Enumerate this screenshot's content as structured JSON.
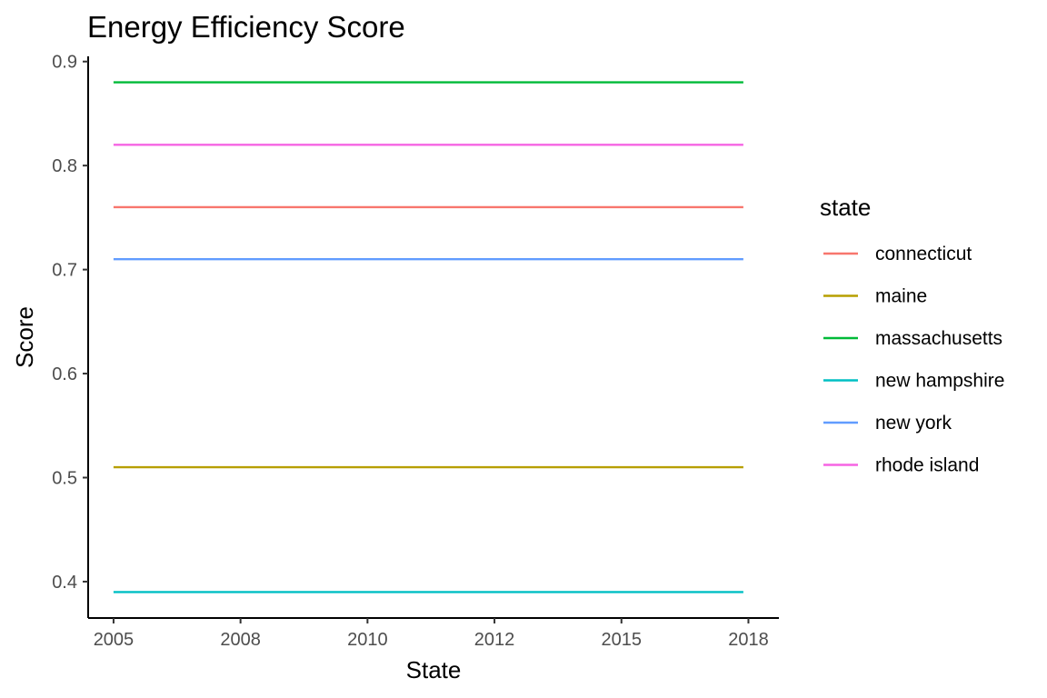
{
  "chart_data": {
    "type": "line",
    "title": "Energy Efficiency Score",
    "xlabel": "State",
    "ylabel": "Score",
    "xlim": [
      2004.5,
      2018.1
    ],
    "ylim": [
      0.365,
      0.905
    ],
    "x_ticks": [
      {
        "value": 2005.0,
        "label": "2005"
      },
      {
        "value": 2007.5,
        "label": "2008"
      },
      {
        "value": 2010.0,
        "label": "2010"
      },
      {
        "value": 2012.5,
        "label": "2012"
      },
      {
        "value": 2015.0,
        "label": "2015"
      },
      {
        "value": 2017.5,
        "label": "2018"
      }
    ],
    "y_ticks": [
      {
        "value": 0.4,
        "label": "0.4"
      },
      {
        "value": 0.5,
        "label": "0.5"
      },
      {
        "value": 0.6,
        "label": "0.6"
      },
      {
        "value": 0.7,
        "label": "0.7"
      },
      {
        "value": 0.8,
        "label": "0.8"
      },
      {
        "value": 0.9,
        "label": "0.9"
      }
    ],
    "grid": false,
    "legend": {
      "title": "state",
      "position": "right"
    },
    "series": [
      {
        "name": "connecticut",
        "color": "#F8766D",
        "x": [
          2005,
          2017.4
        ],
        "y": [
          0.76,
          0.76
        ]
      },
      {
        "name": "maine",
        "color": "#B79F00",
        "x": [
          2005,
          2017.4
        ],
        "y": [
          0.51,
          0.51
        ]
      },
      {
        "name": "massachusetts",
        "color": "#00BA38",
        "x": [
          2005,
          2017.4
        ],
        "y": [
          0.88,
          0.88
        ]
      },
      {
        "name": "new hampshire",
        "color": "#00BFC4",
        "x": [
          2005,
          2017.4
        ],
        "y": [
          0.39,
          0.39
        ]
      },
      {
        "name": "new york",
        "color": "#619CFF",
        "x": [
          2005,
          2017.4
        ],
        "y": [
          0.71,
          0.71
        ]
      },
      {
        "name": "rhode island",
        "color": "#F564E3",
        "x": [
          2005,
          2017.4
        ],
        "y": [
          0.82,
          0.82
        ]
      }
    ]
  }
}
